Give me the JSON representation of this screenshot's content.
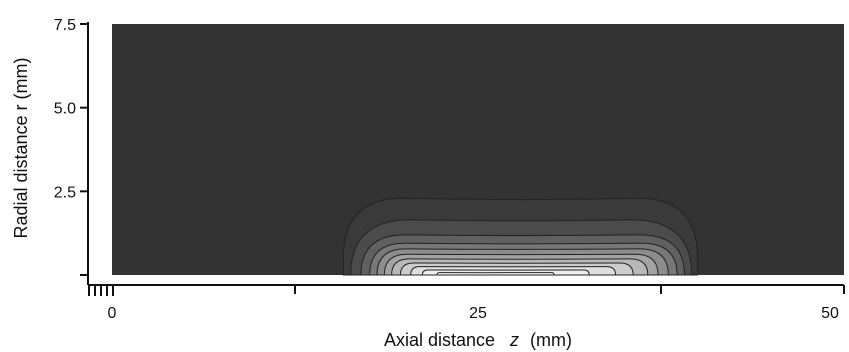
{
  "chart_data": {
    "type": "heatmap",
    "title": "",
    "xlabel": "Axial distance",
    "xlabel_symbol": "z",
    "xlabel_unit": "(mm)",
    "ylabel": "Radial distance r (mm)",
    "xlim": [
      0,
      50
    ],
    "ylim": [
      0,
      7.5
    ],
    "x_ticks": [
      0,
      25,
      50
    ],
    "x_tick_labels": [
      "0",
      "25",
      "50"
    ],
    "y_ticks": [
      2.5,
      5.0,
      7.5
    ],
    "y_tick_labels": [
      "2.5",
      "5.0",
      "7.5"
    ],
    "grid": false,
    "legend": "none",
    "background_level_color": "#333333",
    "peak_color": "#ffffff",
    "contours": [
      {
        "level": 1,
        "color": "#3a3a3a",
        "x_left": 15.8,
        "x_right": 40.0,
        "r_top": 2.3
      },
      {
        "level": 2,
        "color": "#4b4b4b",
        "x_left": 16.3,
        "x_right": 39.6,
        "r_top": 1.65
      },
      {
        "level": 3,
        "color": "#606060",
        "x_left": 17.0,
        "x_right": 39.1,
        "r_top": 1.2
      },
      {
        "level": 4,
        "color": "#777777",
        "x_left": 17.6,
        "x_right": 38.6,
        "r_top": 0.95
      },
      {
        "level": 5,
        "color": "#8c8c8c",
        "x_left": 18.1,
        "x_right": 38.0,
        "r_top": 0.78
      },
      {
        "level": 6,
        "color": "#a3a3a3",
        "x_left": 18.6,
        "x_right": 37.3,
        "r_top": 0.62
      },
      {
        "level": 7,
        "color": "#b8b8b8",
        "x_left": 19.1,
        "x_right": 36.6,
        "r_top": 0.48
      },
      {
        "level": 8,
        "color": "#cccccc",
        "x_left": 19.7,
        "x_right": 35.6,
        "r_top": 0.36
      },
      {
        "level": 9,
        "color": "#dedede",
        "x_left": 20.4,
        "x_right": 34.4,
        "r_top": 0.25
      },
      {
        "level": 10,
        "color": "#eeeeee",
        "x_left": 21.2,
        "x_right": 32.6,
        "r_top": 0.15
      },
      {
        "level": 11,
        "color": "#fafafa",
        "x_left": 22.2,
        "x_right": 30.2,
        "r_top": 0.07
      }
    ]
  }
}
